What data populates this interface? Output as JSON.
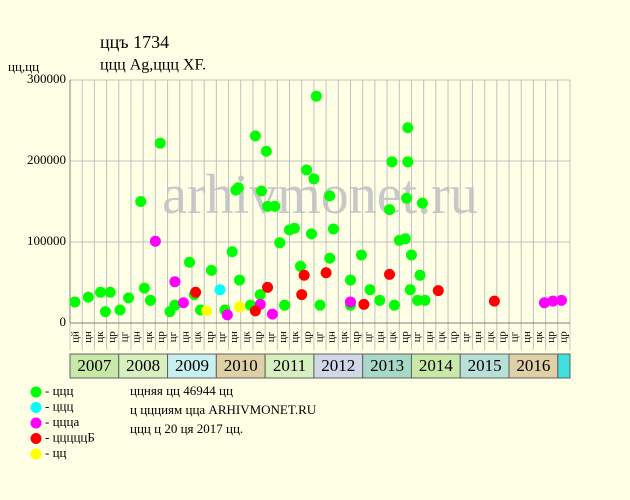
{
  "chart_data": {
    "type": "scatter",
    "title": "ццъ 1734",
    "subtitle": "ццц Ag,ццц XF.",
    "y_label": "цц,цц",
    "watermark": "arhivmonet.ru",
    "xlim": [
      0,
      41
    ],
    "ylim": [
      0,
      300000
    ],
    "yticks": [
      0,
      100000,
      200000,
      300000
    ],
    "grid": true,
    "x_labels": [
      "цй",
      "цн",
      "цк",
      "цр",
      "цг",
      "цн",
      "цк",
      "цр",
      "цг",
      "цн",
      "цк",
      "цр",
      "цг",
      "цн",
      "цк",
      "цр",
      "цг",
      "цн",
      "цк",
      "цр",
      "цг",
      "цн",
      "цк",
      "цр",
      "цг",
      "цн",
      "цк",
      "цр",
      "цг",
      "цн",
      "цк",
      "цр",
      "цг",
      "цн",
      "цк",
      "цр",
      "цг",
      "цн",
      "цк",
      "цр",
      "цр"
    ],
    "years": [
      "2007",
      "2008",
      "2009",
      "2010",
      "2011",
      "2012",
      "2013",
      "2014",
      "2015",
      "2016"
    ],
    "year_colors": [
      "#c8e8a8",
      "#d8f0c0",
      "#c8f0f0",
      "#e0d0a8",
      "#d8f0c0",
      "#d0d8e8",
      "#a8d8c8",
      "#c8e8a8",
      "#b8e0d8",
      "#e0d0a8"
    ],
    "series": [
      {
        "name": "- ццц",
        "color": "#00ff00",
        "x": [
          0.4,
          1.5,
          2.5,
          3.3,
          2.9,
          4.1,
          4.8,
          5.8,
          7.4,
          6.1,
          6.6,
          8.2,
          8.6,
          9.8,
          10.2,
          10.7,
          11.6,
          13.3,
          13.6,
          13.8,
          15.2,
          15.7,
          16.1,
          16.2,
          16.8,
          17.2,
          18.0,
          18.4,
          18.9,
          19.4,
          20.0,
          20.2,
          19.8,
          21.3,
          21.6,
          21.3,
          23,
          23.9,
          25.4,
          26.2,
          26.4,
          27,
          27.5,
          27.6,
          27.7,
          27.7,
          28.9,
          28.0,
          28.7,
          28.5,
          26.6,
          14.8,
          15.6,
          17.6,
          20.5,
          23,
          12.7,
          13.9,
          24.6,
          27.9,
          29.1
        ],
        "values": [
          26000,
          32000,
          38000,
          38000,
          14000,
          16000,
          31000,
          150000,
          222000,
          43000,
          28000,
          14000,
          22000,
          75000,
          35000,
          16000,
          65000,
          88000,
          164000,
          167000,
          231000,
          163000,
          212000,
          144000,
          144000,
          99000,
          115000,
          117000,
          70000,
          189000,
          178000,
          280000,
          110000,
          157000,
          116000,
          80000,
          53000,
          84000,
          28000,
          140000,
          199000,
          102000,
          104000,
          154000,
          199000,
          241000,
          148000,
          84000,
          59000,
          28000,
          22000,
          22000,
          35000,
          22000,
          22000,
          22000,
          16000,
          53000,
          41000,
          41000,
          28000
        ]
      },
      {
        "name": "- ццц",
        "color": "#00ffff",
        "x": [
          12.3
        ],
        "values": [
          41000
        ]
      },
      {
        "name": "- ццца",
        "color": "#ff00ff",
        "x": [
          7.0,
          8.6,
          9.3,
          12.9,
          15.6,
          16.6,
          23,
          38.9,
          39.6,
          40.3
        ],
        "values": [
          101000,
          51000,
          25000,
          10000,
          23000,
          11000,
          26000,
          25000,
          27000,
          28000
        ]
      },
      {
        "name": "- цццццБ",
        "color": "#ff0000",
        "x": [
          10.3,
          16.2,
          15.2,
          19,
          19.2,
          21,
          24.1,
          26.2,
          30.2,
          34.8
        ],
        "values": [
          38000,
          44000,
          15000,
          35000,
          59000,
          62000,
          23000,
          60000,
          40000,
          27000
        ]
      },
      {
        "name": "- цц",
        "color": "#ffff00",
        "x": [
          11.2,
          13.9
        ],
        "values": [
          15000,
          20000
        ]
      }
    ],
    "notes": [
      "ццняя цц 46944 цц",
      "ц ццциям цца ARHIVMONET.RU",
      "ццц ц 20 ця 2017 цц."
    ]
  }
}
